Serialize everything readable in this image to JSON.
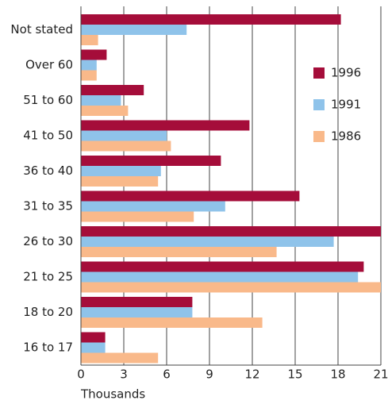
{
  "chart_data": {
    "type": "barh",
    "xlabel": "Thousands",
    "categories": [
      "Not stated",
      "Over 60",
      "51 to 60",
      "41 to 50",
      "36 to 40",
      "31 to 35",
      "26 to 30",
      "21 to 25",
      "18 to 20",
      "16 to 17"
    ],
    "series": [
      {
        "name": "1996",
        "color": "#a50d3a",
        "values": [
          18.2,
          1.8,
          4.4,
          11.8,
          9.8,
          15.3,
          21,
          19.8,
          7.8,
          1.7
        ]
      },
      {
        "name": "1991",
        "color": "#8fc3ea",
        "values": [
          7.4,
          1.1,
          2.8,
          6.0,
          5.6,
          10.1,
          17.7,
          19.4,
          7.8,
          1.7
        ]
      },
      {
        "name": "1986",
        "color": "#f9b98a",
        "values": [
          1.2,
          1.1,
          3.3,
          6.3,
          5.4,
          7.9,
          13.7,
          21,
          12.7,
          5.4
        ]
      }
    ],
    "xlim": [
      0,
      21
    ],
    "xticks": [
      0,
      3,
      6,
      9,
      12,
      15,
      18,
      21
    ],
    "grid": true,
    "legend": "right"
  }
}
